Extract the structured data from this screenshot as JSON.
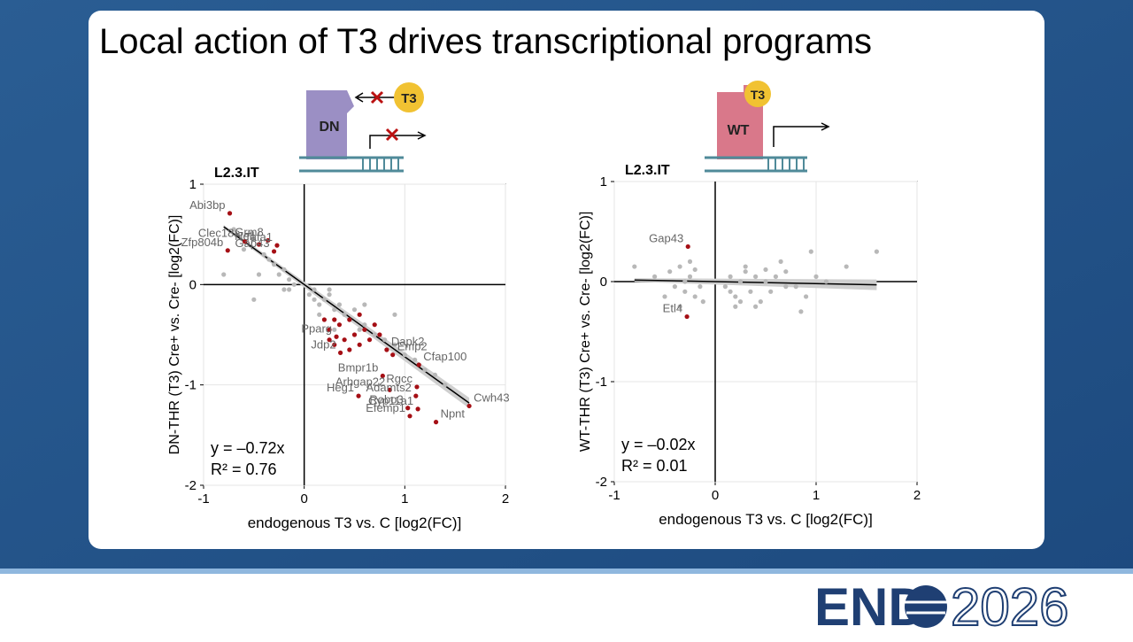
{
  "title": "Local action of T3 drives transcriptional programs",
  "diagrams": [
    {
      "protein": "DN",
      "ligand": "T3"
    },
    {
      "protein": "WT",
      "ligand": "T3"
    }
  ],
  "chart_data": [
    {
      "type": "scatter",
      "panel_label": "L2.3.IT",
      "xlabel": "endogenous T3 vs. C [log2(FC)]",
      "ylabel": "DN-THR (T3) Cre+ vs. Cre- [log2(FC)]",
      "xlim": [
        -1,
        2
      ],
      "ylim": [
        -2,
        1
      ],
      "xticks": [
        -1,
        0,
        1,
        2
      ],
      "yticks": [
        -2,
        -1,
        0,
        1
      ],
      "grid": true,
      "fit_slope": -0.72,
      "annotations": [
        "y = –0.72x",
        "R² = 0.76"
      ],
      "series": [
        {
          "color": "#b8b8b8",
          "x": [
            -0.8,
            -0.7,
            -0.6,
            -0.5,
            -0.45,
            -0.4,
            -0.35,
            -0.3,
            -0.25,
            -0.2,
            -0.2,
            -0.15,
            -0.1,
            -0.5,
            -0.15,
            0.05,
            0.1,
            0.15,
            0.2,
            0.25,
            0.3,
            0.35,
            0.4,
            0.45,
            0.5,
            0.55,
            0.6,
            0.7,
            0.8,
            0.9,
            1.0,
            1.1,
            1.2,
            1.3,
            1.4,
            0.25,
            0.15,
            0.3,
            0.6,
            0.9,
            0.1
          ],
          "values": [
            0.1,
            0.55,
            0.35,
            0.45,
            0.1,
            0.3,
            0.25,
            0.2,
            0.1,
            0.15,
            -0.05,
            0.05,
            0.0,
            -0.15,
            -0.05,
            -0.1,
            -0.05,
            -0.2,
            -0.15,
            -0.1,
            -0.25,
            -0.2,
            -0.3,
            -0.35,
            -0.25,
            -0.45,
            -0.4,
            -0.5,
            -0.55,
            -0.6,
            -0.7,
            -0.75,
            -0.85,
            -0.9,
            -1.0,
            -0.05,
            -0.3,
            -0.45,
            -0.2,
            -0.3,
            -0.15
          ]
        },
        {
          "color": "#a50f15",
          "x": [
            0.2,
            0.25,
            0.3,
            0.35,
            0.4,
            0.45,
            0.5,
            0.55,
            0.6,
            0.65,
            0.7,
            0.75,
            0.3,
            0.45,
            0.55,
            0.25
          ],
          "values": [
            -0.35,
            -0.45,
            -0.6,
            -0.4,
            -0.55,
            -0.35,
            -0.5,
            -0.6,
            -0.45,
            -0.55,
            -0.4,
            -0.5,
            -0.35,
            -0.65,
            -0.3,
            -0.55
          ]
        },
        {
          "color": "#a50f15",
          "x": [
            -0.74,
            -0.59,
            -0.36,
            -0.27,
            -0.45,
            -0.3,
            -0.76,
            0.82,
            0.32,
            0.36,
            0.88,
            1.14,
            0.78,
            0.85,
            1.12,
            1.11,
            0.54,
            1.03,
            1.13,
            1.05,
            1.31,
            1.64
          ],
          "values": [
            0.71,
            0.43,
            0.44,
            0.39,
            0.4,
            0.33,
            0.34,
            -0.65,
            -0.52,
            -0.68,
            -0.7,
            -0.8,
            -0.91,
            -1.05,
            -1.02,
            -1.11,
            -1.11,
            -1.23,
            -1.24,
            -1.31,
            -1.37,
            -1.21
          ],
          "labels": [
            "Abi3bp",
            "Clec18a",
            "Grm8",
            "Tafa1",
            "Nell",
            "Gap43",
            "Zfp804b",
            "Dapk2",
            "Pparg",
            "Jdp2",
            "Emp2",
            "Cfap100",
            "Bmpr1b",
            "Arhgap22",
            "Rgcc",
            "Adamts2",
            "Heg1",
            "Robo3",
            "Cyp11a1",
            "Efemp1",
            "Npnt",
            "Cwh43"
          ]
        }
      ]
    },
    {
      "type": "scatter",
      "panel_label": "L2.3.IT",
      "xlabel": "endogenous T3 vs. C [log2(FC)]",
      "ylabel": "WT-THR (T3) Cre+ vs. Cre- [log2(FC)]",
      "xlim": [
        -1,
        2
      ],
      "ylim": [
        -2,
        1
      ],
      "xticks": [
        -1,
        0,
        1,
        2
      ],
      "yticks": [
        -2,
        -1,
        0,
        1
      ],
      "grid": true,
      "fit_slope": -0.02,
      "annotations": [
        "y = –0.02x",
        "R² = 0.01"
      ],
      "series": [
        {
          "color": "#b8b8b8",
          "x": [
            -0.8,
            -0.6,
            -0.5,
            -0.45,
            -0.4,
            -0.35,
            -0.3,
            -0.25,
            -0.2,
            -0.15,
            -0.12,
            -0.35,
            -0.25,
            -0.2,
            -0.3,
            0.1,
            0.15,
            0.2,
            0.25,
            0.3,
            0.35,
            0.4,
            0.45,
            0.5,
            0.55,
            0.6,
            0.7,
            0.8,
            0.9,
            1.0,
            1.1,
            1.3,
            1.6,
            0.2,
            0.3,
            0.5,
            0.7,
            0.95,
            0.15,
            0.4,
            0.65,
            0.85,
            0.25
          ],
          "values": [
            0.15,
            0.05,
            -0.15,
            0.1,
            -0.05,
            0.15,
            -0.1,
            0.05,
            0.12,
            -0.05,
            -0.2,
            -0.25,
            0.2,
            -0.15,
            0.0,
            -0.05,
            0.05,
            -0.15,
            0.0,
            0.1,
            -0.1,
            0.05,
            -0.2,
            0.0,
            -0.1,
            0.05,
            0.1,
            -0.05,
            -0.15,
            0.05,
            0.0,
            0.15,
            0.3,
            -0.25,
            0.15,
            0.12,
            -0.05,
            0.3,
            -0.1,
            -0.25,
            0.2,
            -0.3,
            -0.2
          ]
        },
        {
          "color": "#a50f15",
          "x": [
            -0.27,
            -0.28
          ],
          "values": [
            0.35,
            -0.35
          ],
          "labels": [
            "Gap43",
            "Etl4"
          ]
        }
      ]
    }
  ],
  "logo": {
    "left": "END",
    "right": "2026"
  }
}
